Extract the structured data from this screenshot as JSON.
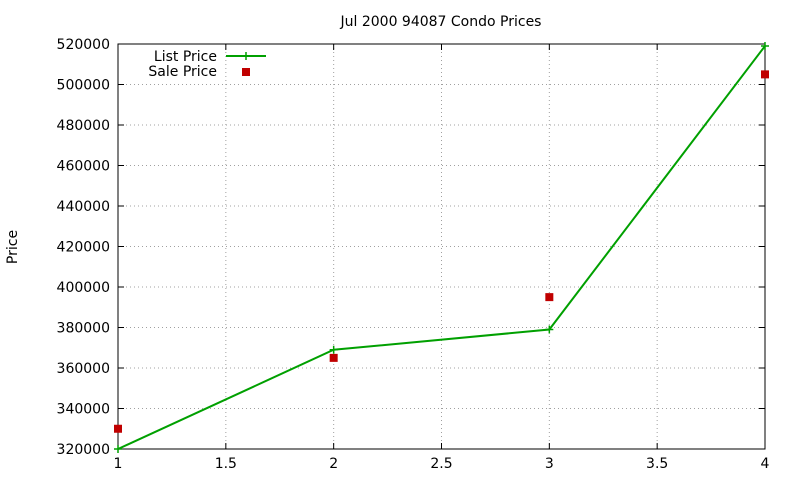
{
  "chart_data": {
    "type": "line",
    "title": "Jul 2000 94087 Condo Prices",
    "xlabel": "",
    "ylabel": "Price",
    "xlim": [
      1,
      4
    ],
    "ylim": [
      320000,
      520000
    ],
    "x_ticks": [
      "1",
      "1.5",
      "2",
      "2.5",
      "3",
      "3.5",
      "4"
    ],
    "y_ticks": [
      "320000",
      "340000",
      "360000",
      "380000",
      "400000",
      "420000",
      "440000",
      "460000",
      "480000",
      "500000",
      "520000"
    ],
    "grid": true,
    "legend_position": "top-left",
    "series": [
      {
        "name": "List Price",
        "style": "linespoints",
        "color": "#00a000",
        "points": [
          [
            1,
            320000
          ],
          [
            2,
            369000
          ],
          [
            3,
            379000
          ],
          [
            4,
            519000
          ]
        ]
      },
      {
        "name": "Sale Price",
        "style": "points",
        "color": "#c00000",
        "points": [
          [
            1,
            330000
          ],
          [
            2,
            365000
          ],
          [
            3,
            395000
          ],
          [
            4,
            505000
          ]
        ]
      }
    ]
  }
}
